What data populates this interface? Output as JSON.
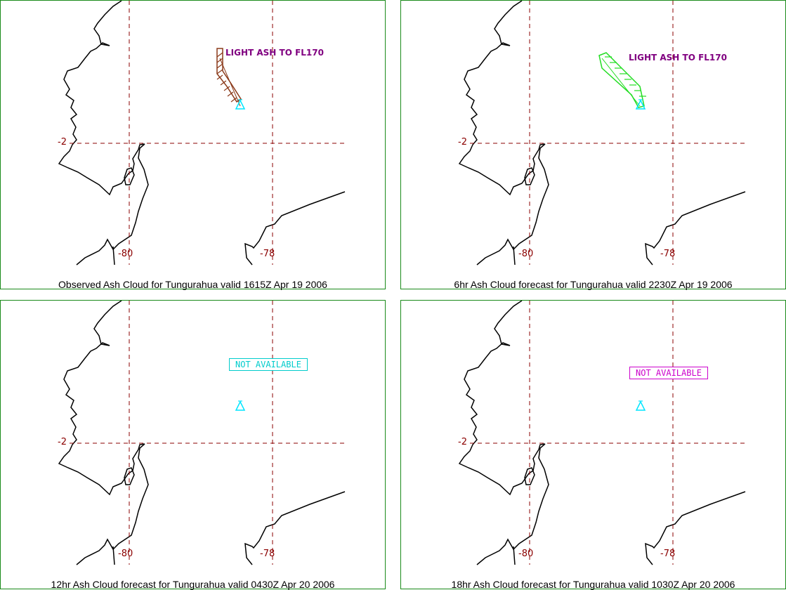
{
  "colors": {
    "border": "#1a8a1a",
    "coast": "#000000",
    "grid": "#8b0000",
    "volcano": "#00e5ff",
    "label": "#800080",
    "ash_observed": "#8b3a1a",
    "ash_forecast": "#22dd22",
    "na_cyan": "#00cccc",
    "na_magenta": "#cc00cc"
  },
  "panels": [
    {
      "caption": "Observed Ash Cloud for Tungurahua valid 1615Z Apr 19 2006",
      "lat_label": "-2",
      "lon_labels": [
        "-80",
        "-78"
      ],
      "ash_label": "LIGHT ASH TO FL170",
      "ash_type": "observed",
      "volcano_icon": "volcano-triangle-icon"
    },
    {
      "caption": "6hr Ash Cloud forecast for Tungurahua valid 2230Z Apr 19 2006",
      "lat_label": "-2",
      "lon_labels": [
        "-80",
        "-78"
      ],
      "ash_label": "LIGHT ASH TO FL170",
      "ash_type": "forecast",
      "volcano_icon": "volcano-triangle-icon"
    },
    {
      "caption": "12hr Ash Cloud forecast for Tungurahua valid 0430Z Apr 20 2006",
      "lat_label": "-2",
      "lon_labels": [
        "-80",
        "-78"
      ],
      "status": "NOT AVAILABLE",
      "status_color": "#00cccc",
      "volcano_icon": "volcano-triangle-icon"
    },
    {
      "caption": "18hr Ash Cloud forecast for Tungurahua valid 1030Z Apr 20 2006",
      "lat_label": "-2",
      "lon_labels": [
        "-80",
        "-78"
      ],
      "status": "NOT AVAILABLE",
      "status_color": "#cc00cc",
      "volcano_icon": "volcano-triangle-icon"
    }
  ]
}
